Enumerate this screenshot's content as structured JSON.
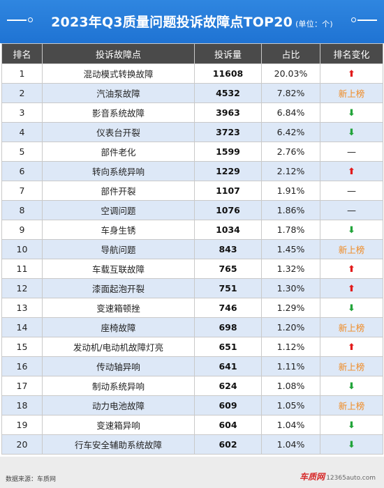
{
  "header": {
    "title": "2023年Q3质量问题投诉故障点TOP20",
    "unit": "(单位：个)"
  },
  "columns": [
    "排名",
    "投诉故障点",
    "投诉量",
    "占比",
    "排名变化"
  ],
  "rows": [
    {
      "rank": "1",
      "item": "混动模式转换故障",
      "count": "11608",
      "pct": "20.03%",
      "change": "up",
      "change_text": "⬆"
    },
    {
      "rank": "2",
      "item": "汽油泵故障",
      "count": "4532",
      "pct": "7.82%",
      "change": "new",
      "change_text": "新上榜"
    },
    {
      "rank": "3",
      "item": "影音系统故障",
      "count": "3963",
      "pct": "6.84%",
      "change": "down",
      "change_text": "⬇"
    },
    {
      "rank": "4",
      "item": "仪表台开裂",
      "count": "3723",
      "pct": "6.42%",
      "change": "down",
      "change_text": "⬇"
    },
    {
      "rank": "5",
      "item": "部件老化",
      "count": "1599",
      "pct": "2.76%",
      "change": "same",
      "change_text": "—"
    },
    {
      "rank": "6",
      "item": "转向系统异响",
      "count": "1229",
      "pct": "2.12%",
      "change": "up",
      "change_text": "⬆"
    },
    {
      "rank": "7",
      "item": "部件开裂",
      "count": "1107",
      "pct": "1.91%",
      "change": "same",
      "change_text": "—"
    },
    {
      "rank": "8",
      "item": "空调问题",
      "count": "1076",
      "pct": "1.86%",
      "change": "same",
      "change_text": "—"
    },
    {
      "rank": "9",
      "item": "车身生锈",
      "count": "1034",
      "pct": "1.78%",
      "change": "down",
      "change_text": "⬇"
    },
    {
      "rank": "10",
      "item": "导航问题",
      "count": "843",
      "pct": "1.45%",
      "change": "new",
      "change_text": "新上榜"
    },
    {
      "rank": "11",
      "item": "车载互联故障",
      "count": "765",
      "pct": "1.32%",
      "change": "up",
      "change_text": "⬆"
    },
    {
      "rank": "12",
      "item": "漆面起泡开裂",
      "count": "751",
      "pct": "1.30%",
      "change": "up",
      "change_text": "⬆"
    },
    {
      "rank": "13",
      "item": "变速箱顿挫",
      "count": "746",
      "pct": "1.29%",
      "change": "down",
      "change_text": "⬇"
    },
    {
      "rank": "14",
      "item": "座椅故障",
      "count": "698",
      "pct": "1.20%",
      "change": "new",
      "change_text": "新上榜"
    },
    {
      "rank": "15",
      "item": "发动机/电动机故障灯亮",
      "count": "651",
      "pct": "1.12%",
      "change": "up",
      "change_text": "⬆"
    },
    {
      "rank": "16",
      "item": "传动轴异响",
      "count": "641",
      "pct": "1.11%",
      "change": "new",
      "change_text": "新上榜"
    },
    {
      "rank": "17",
      "item": "制动系统异响",
      "count": "624",
      "pct": "1.08%",
      "change": "down",
      "change_text": "⬇"
    },
    {
      "rank": "18",
      "item": "动力电池故障",
      "count": "609",
      "pct": "1.05%",
      "change": "new",
      "change_text": "新上榜"
    },
    {
      "rank": "19",
      "item": "变速箱异响",
      "count": "604",
      "pct": "1.04%",
      "change": "down",
      "change_text": "⬇"
    },
    {
      "rank": "20",
      "item": "行车安全辅助系统故障",
      "count": "602",
      "pct": "1.04%",
      "change": "down",
      "change_text": "⬇"
    }
  ],
  "footer": {
    "source": "数据来源：车质网",
    "logo": "车质网",
    "url": "12365auto.com"
  },
  "colors": {
    "banner": "#1f73d3",
    "header_row": "#4a4a4a",
    "stripe": "#dde8f7",
    "up": "#e21b1b",
    "down": "#22a43a",
    "new": "#f08a22"
  }
}
